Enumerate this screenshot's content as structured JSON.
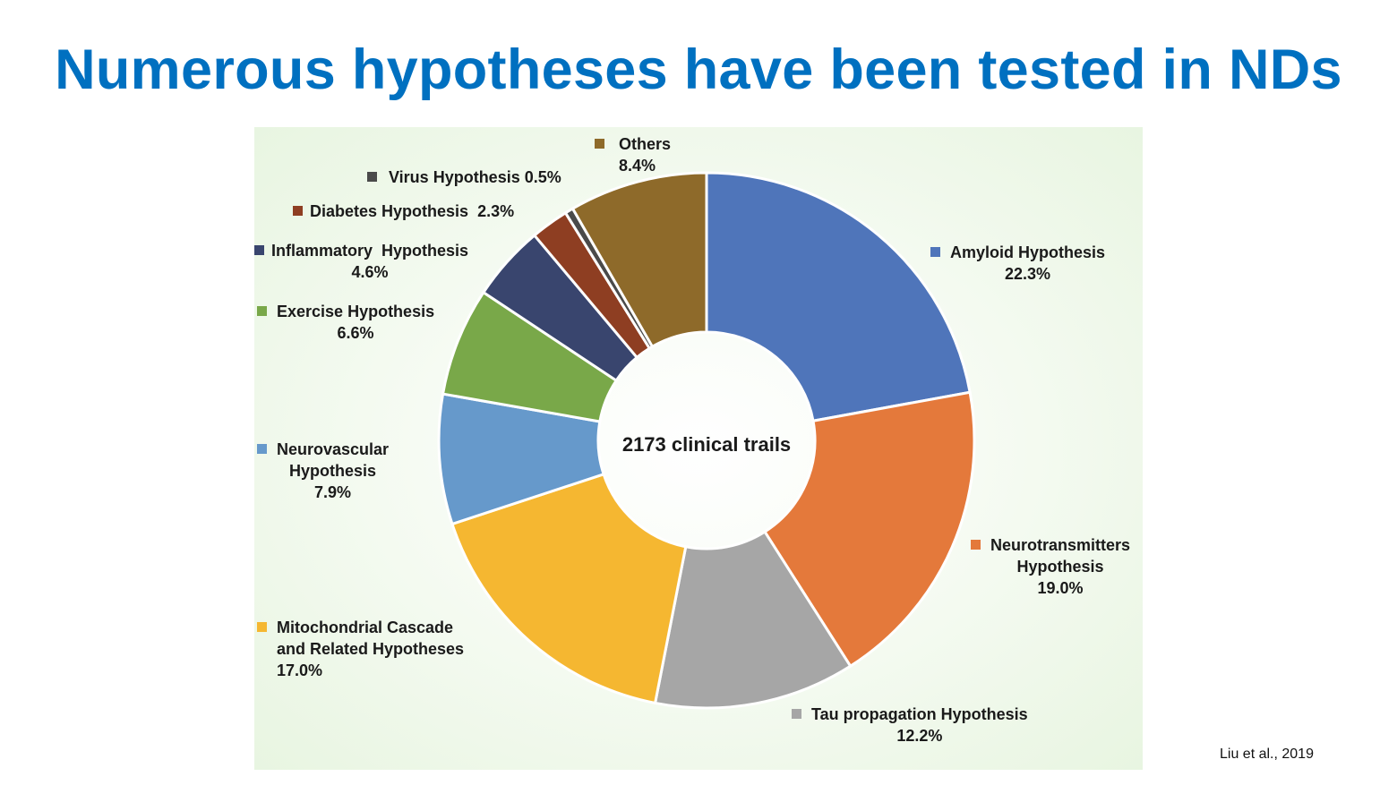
{
  "slide": {
    "title": "Numerous hypotheses have been tested in NDs",
    "citation": "Liu et al., 2019"
  },
  "chart_data": {
    "type": "pie",
    "donut": true,
    "center_text": "2173 clinical trails",
    "slices": [
      {
        "name": "Amyloid Hypothesis",
        "value": 22.3,
        "value_label": "22.3%",
        "color": "#4F75BA"
      },
      {
        "name": "Neurotransmitters Hypothesis",
        "value": 19.0,
        "value_label": "19.0%",
        "color": "#E4793B"
      },
      {
        "name": "Tau propagation Hypothesis",
        "value": 12.2,
        "value_label": "12.2%",
        "color": "#A6A6A6"
      },
      {
        "name": "Mitochondrial Cascade and Related Hypotheses",
        "value": 17.0,
        "value_label": "17.0%",
        "color": "#F5B731"
      },
      {
        "name": "Neurovascular Hypothesis",
        "value": 7.9,
        "value_label": "7.9%",
        "color": "#6699CB"
      },
      {
        "name": "Exercise Hypothesis",
        "value": 6.6,
        "value_label": "6.6%",
        "color": "#79A849"
      },
      {
        "name": "Inflammatory  Hypothesis",
        "value": 4.6,
        "value_label": "4.6%",
        "color": "#39456E"
      },
      {
        "name": "Diabetes Hypothesis",
        "value": 2.3,
        "value_label": "2.3%",
        "color": "#8E3E22"
      },
      {
        "name": "Virus Hypothesis",
        "value": 0.5,
        "value_label": "0.5%",
        "color": "#4A4A4A"
      },
      {
        "name": "Others",
        "value": 8.4,
        "value_label": "8.4%",
        "color": "#8E6A2A"
      }
    ]
  }
}
